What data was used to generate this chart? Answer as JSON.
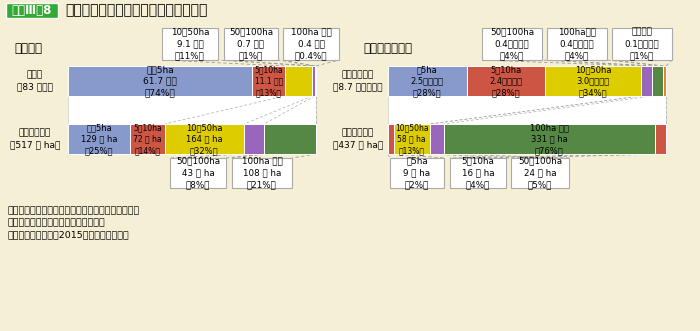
{
  "bg_color": "#f5f0d5",
  "title": "林家・林業経営体の数と保有山林面積",
  "badge_text": "資料Ⅲ－8",
  "badge_bg": "#33aa33",
  "badge_fg": "#ffffff",
  "note1": "注１：（　）内の数値は合計に占める割合である。",
  "note2": "　２：計の不一致は四捨五入による。",
  "note3": "資料：農林水産省「2015年農業センサス」",
  "c_blue": "#8899cc",
  "c_red": "#cc5544",
  "c_yellow": "#ddcc00",
  "c_purple": "#9966bb",
  "c_green": "#558844",
  "c_orange": "#dd8833",
  "c_white": "#ffffff",
  "c_border": "#999999",
  "rinka_count": [
    {
      "v": 74,
      "c": "#8899cc",
      "t1": "１～5ha",
      "t2": "61.7 万戸",
      "t3": "（74%）"
    },
    {
      "v": 13,
      "c": "#cc5544",
      "t1": "5～10ha",
      "t2": "11.1 万戸",
      "t3": "（13%）"
    },
    {
      "v": 11,
      "c": "#ddcc00",
      "t1": "",
      "t2": "",
      "t3": ""
    },
    {
      "v": 1,
      "c": "#9966bb",
      "t1": "",
      "t2": "",
      "t3": ""
    },
    {
      "v": 0.5,
      "c": "#558844",
      "t1": "",
      "t2": "",
      "t3": ""
    }
  ],
  "rinka_count_boxes": [
    {
      "t1": "10～50ha",
      "t2": "9.1 万戸",
      "t3": "（11%）"
    },
    {
      "t1": "50～100ha",
      "t2": "0.7 万戸",
      "t3": "（1%）"
    },
    {
      "t1": "100ha 以上",
      "t2": "0.4 万戸",
      "t3": "（0.4%）"
    }
  ],
  "rinka_area": [
    {
      "v": 25,
      "c": "#8899cc",
      "t1": "１～5ha",
      "t2": "129 万 ha",
      "t3": "（25%）"
    },
    {
      "v": 14,
      "c": "#cc5544",
      "t1": "5～10ha",
      "t2": "72 万 ha",
      "t3": "（14%）"
    },
    {
      "v": 32,
      "c": "#ddcc00",
      "t1": "10～50ha",
      "t2": "164 万 ha",
      "t3": "（32%）"
    },
    {
      "v": 8,
      "c": "#9966bb",
      "t1": "",
      "t2": "",
      "t3": ""
    },
    {
      "v": 21,
      "c": "#558844",
      "t1": "",
      "t2": "",
      "t3": ""
    }
  ],
  "rinka_area_boxes": [
    {
      "t1": "50～100ha",
      "t2": "43 万 ha",
      "t3": "（8%）"
    },
    {
      "t1": "100ha 以上",
      "t2": "108 万 ha",
      "t3": "（21%）"
    }
  ],
  "ringyo_count": [
    {
      "v": 28,
      "c": "#8899cc",
      "t1": "～5ha",
      "t2": "2.5万経営体",
      "t3": "（28%）"
    },
    {
      "v": 28,
      "c": "#cc5544",
      "t1": "5～10ha",
      "t2": "2.4万経営体",
      "t3": "（28%）"
    },
    {
      "v": 34,
      "c": "#ddcc00",
      "t1": "10～50ha",
      "t2": "3.0万経営体",
      "t3": "（34%）"
    },
    {
      "v": 4,
      "c": "#9966bb",
      "t1": "",
      "t2": "",
      "t3": ""
    },
    {
      "v": 4,
      "c": "#558844",
      "t1": "",
      "t2": "",
      "t3": ""
    },
    {
      "v": 1,
      "c": "#dd8833",
      "t1": "",
      "t2": "",
      "t3": ""
    }
  ],
  "ringyo_count_boxes": [
    {
      "t1": "50～100ha",
      "t2": "0.4万経営体",
      "t3": "（4%）"
    },
    {
      "t1": "100ha以上",
      "t2": "0.4万経営体",
      "t3": "（4%）"
    },
    {
      "t1": "保有なし",
      "t2": "0.1万経営体",
      "t3": "（1%）"
    }
  ],
  "ringyo_area_main": [
    {
      "v": 2,
      "c": "#cc5544",
      "t1": "",
      "t2": "",
      "t3": ""
    },
    {
      "v": 13,
      "c": "#ddcc00",
      "t1": "10～50ha",
      "t2": "58 万 ha",
      "t3": "（13%）"
    },
    {
      "v": 5,
      "c": "#9966bb",
      "t1": "",
      "t2": "",
      "t3": ""
    },
    {
      "v": 76,
      "c": "#558844",
      "t1": "100ha 以上",
      "t2": "331 万 ha",
      "t3": "（76%）"
    },
    {
      "v": 4,
      "c": "#cc5544",
      "t1": "",
      "t2": "",
      "t3": ""
    }
  ],
  "ringyo_area_boxes": [
    {
      "t1": "～5ha",
      "t2": "9 万 ha",
      "t3": "（2%）"
    },
    {
      "t1": "5～10ha",
      "t2": "16 万 ha",
      "t3": "（4%）"
    },
    {
      "t1": "50～100ha",
      "t2": "24 万 ha",
      "t3": "（5%）"
    }
  ]
}
